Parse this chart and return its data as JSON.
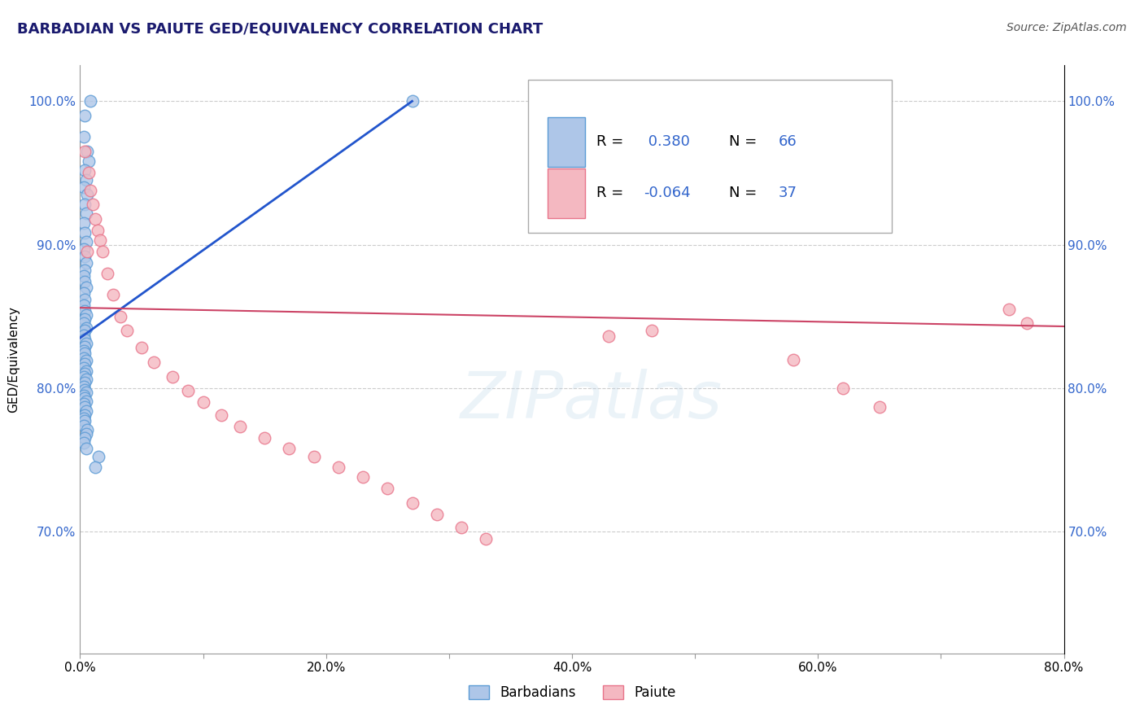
{
  "title": "BARBADIAN VS PAIUTE GED/EQUIVALENCY CORRELATION CHART",
  "source_text": "Source: ZipAtlas.com",
  "ylabel": "GED/Equivalency",
  "xlim": [
    0.0,
    0.8
  ],
  "ylim": [
    0.615,
    1.025
  ],
  "xtick_labels": [
    "0.0%",
    "",
    "20.0%",
    "",
    "40.0%",
    "",
    "60.0%",
    "",
    "80.0%"
  ],
  "xtick_vals": [
    0.0,
    0.1,
    0.2,
    0.3,
    0.4,
    0.5,
    0.6,
    0.7,
    0.8
  ],
  "ytick_labels": [
    "70.0%",
    "80.0%",
    "90.0%",
    "100.0%"
  ],
  "ytick_vals": [
    0.7,
    0.8,
    0.9,
    1.0
  ],
  "barbadian_color": "#aec6e8",
  "paiute_color": "#f4b8c1",
  "barbadian_edge": "#5b9bd5",
  "paiute_edge": "#e8748a",
  "trend_blue": "#2255cc",
  "trend_pink": "#cc4466",
  "watermark": "ZIPatlas",
  "barbadian_x": [
    0.004,
    0.003,
    0.006,
    0.007,
    0.004,
    0.005,
    0.003,
    0.006,
    0.004,
    0.005,
    0.003,
    0.004,
    0.005,
    0.003,
    0.004,
    0.005,
    0.004,
    0.003,
    0.004,
    0.005,
    0.003,
    0.004,
    0.003,
    0.004,
    0.005,
    0.004,
    0.003,
    0.005,
    0.004,
    0.003,
    0.004,
    0.005,
    0.004,
    0.003,
    0.004,
    0.003,
    0.005,
    0.004,
    0.003,
    0.005,
    0.004,
    0.003,
    0.005,
    0.004,
    0.003,
    0.004,
    0.005,
    0.003,
    0.004,
    0.005,
    0.003,
    0.004,
    0.005,
    0.004,
    0.003,
    0.004,
    0.003,
    0.006,
    0.005,
    0.004,
    0.003,
    0.005,
    0.015,
    0.012,
    0.27,
    0.008
  ],
  "barbadian_y": [
    0.99,
    0.975,
    0.965,
    0.958,
    0.952,
    0.945,
    0.94,
    0.935,
    0.928,
    0.922,
    0.915,
    0.908,
    0.902,
    0.897,
    0.892,
    0.887,
    0.882,
    0.878,
    0.874,
    0.87,
    0.866,
    0.862,
    0.858,
    0.854,
    0.851,
    0.848,
    0.845,
    0.842,
    0.84,
    0.837,
    0.834,
    0.831,
    0.829,
    0.826,
    0.824,
    0.821,
    0.819,
    0.817,
    0.814,
    0.812,
    0.81,
    0.808,
    0.806,
    0.804,
    0.801,
    0.799,
    0.797,
    0.795,
    0.793,
    0.791,
    0.789,
    0.787,
    0.784,
    0.781,
    0.779,
    0.777,
    0.774,
    0.771,
    0.768,
    0.765,
    0.762,
    0.758,
    0.752,
    0.745,
    1.0,
    1.0
  ],
  "paiute_x": [
    0.004,
    0.007,
    0.008,
    0.01,
    0.012,
    0.014,
    0.016,
    0.006,
    0.018,
    0.022,
    0.027,
    0.033,
    0.038,
    0.05,
    0.06,
    0.075,
    0.088,
    0.1,
    0.115,
    0.13,
    0.15,
    0.17,
    0.19,
    0.21,
    0.23,
    0.25,
    0.27,
    0.29,
    0.31,
    0.33,
    0.43,
    0.465,
    0.58,
    0.62,
    0.65,
    0.755,
    0.77
  ],
  "paiute_y": [
    0.965,
    0.95,
    0.938,
    0.928,
    0.918,
    0.91,
    0.903,
    0.895,
    0.895,
    0.88,
    0.865,
    0.85,
    0.84,
    0.828,
    0.818,
    0.808,
    0.798,
    0.79,
    0.781,
    0.773,
    0.765,
    0.758,
    0.752,
    0.745,
    0.738,
    0.73,
    0.72,
    0.712,
    0.703,
    0.695,
    0.836,
    0.84,
    0.82,
    0.8,
    0.787,
    0.855,
    0.845
  ]
}
